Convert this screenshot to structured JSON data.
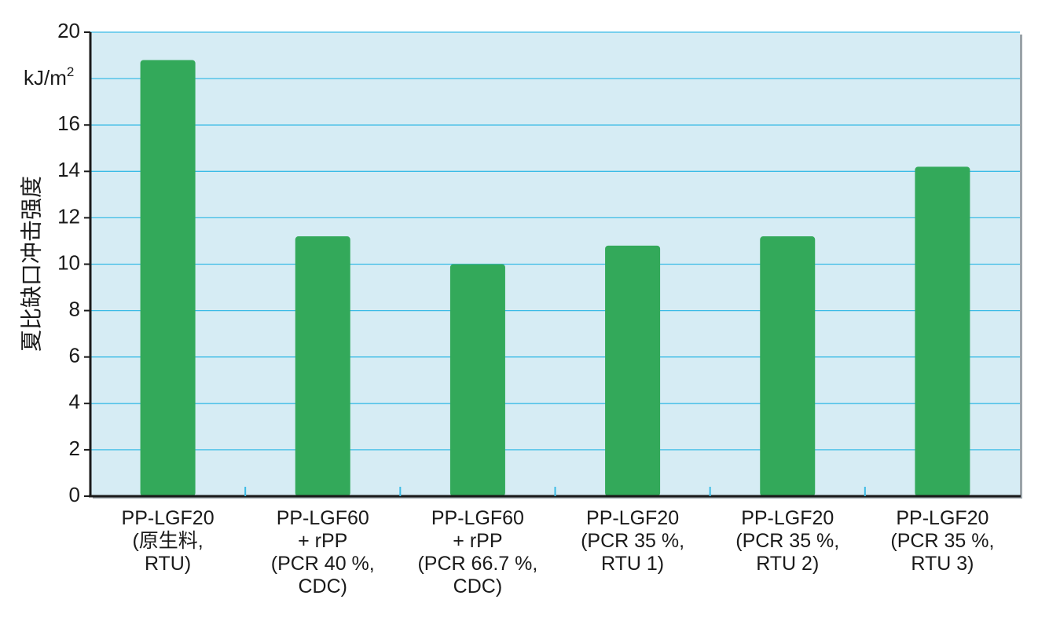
{
  "chart_data": {
    "type": "bar",
    "title": "",
    "ylabel": "夏比缺口冲击强度",
    "unit": "kJ/m",
    "unit_superscript": "2",
    "ylim": [
      0,
      20
    ],
    "yticks": [
      0,
      2,
      4,
      6,
      8,
      10,
      12,
      14,
      16,
      20
    ],
    "grid": true,
    "categories": [
      [
        "PP-LGF20",
        "(原生料,",
        "RTU)"
      ],
      [
        "PP-LGF60",
        "+ rPP",
        "(PCR 40 %,",
        "CDC)"
      ],
      [
        "PP-LGF60",
        "+ rPP",
        "(PCR 66.7 %,",
        "CDC)"
      ],
      [
        "PP-LGF20",
        "(PCR 35 %,",
        "RTU 1)"
      ],
      [
        "PP-LGF20",
        "(PCR 35 %,",
        "RTU 2)"
      ],
      [
        "PP-LGF20",
        "(PCR 35 %,",
        "RTU 3)"
      ]
    ],
    "values": [
      18.8,
      11.2,
      10.0,
      10.8,
      11.2,
      14.2
    ],
    "colors": {
      "bar": "#33a95a",
      "plot_background": "#d6ecf4",
      "gridline": "#3bbbe6",
      "axis": "#1a1a1a"
    }
  }
}
